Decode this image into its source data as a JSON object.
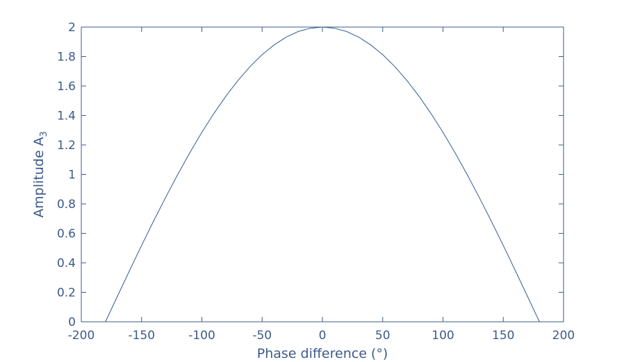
{
  "chart_data": {
    "type": "line",
    "title": "",
    "xlabel": "Phase difference (°)",
    "ylabel": "Amplitude A",
    "ylabel_subscript": "3",
    "xlim": [
      -200,
      200
    ],
    "ylim": [
      0,
      2
    ],
    "x_ticks": [
      -200,
      -150,
      -100,
      -50,
      0,
      50,
      100,
      150,
      200
    ],
    "y_ticks": [
      0,
      0.2,
      0.4,
      0.6,
      0.8,
      1,
      1.2,
      1.4,
      1.6,
      1.8,
      2
    ],
    "x_tick_labels": [
      "-200",
      "-150",
      "-100",
      "-50",
      "0",
      "50",
      "100",
      "150",
      "200"
    ],
    "y_tick_labels": [
      "0",
      "0.2",
      "0.4",
      "0.6",
      "0.8",
      "1",
      "1.2",
      "1.4",
      "1.6",
      "1.8",
      "2"
    ],
    "grid": false,
    "series": [
      {
        "x": [
          -180,
          -170,
          -160,
          -150,
          -140,
          -130,
          -120,
          -110,
          -100,
          -90,
          -80,
          -70,
          -60,
          -50,
          -40,
          -30,
          -20,
          -10,
          0,
          10,
          20,
          30,
          40,
          50,
          60,
          70,
          80,
          90,
          100,
          110,
          120,
          130,
          140,
          150,
          160,
          170,
          180
        ],
        "y": [
          0,
          0.174,
          0.347,
          0.518,
          0.684,
          0.845,
          1.0,
          1.147,
          1.286,
          1.414,
          1.532,
          1.638,
          1.732,
          1.813,
          1.879,
          1.932,
          1.97,
          1.992,
          2.0,
          1.992,
          1.97,
          1.932,
          1.879,
          1.813,
          1.732,
          1.638,
          1.532,
          1.414,
          1.286,
          1.147,
          1.0,
          0.845,
          0.684,
          0.518,
          0.347,
          0.174,
          0
        ]
      }
    ],
    "colors": {
      "axis": "#3b5a8a",
      "line": "#2e5b94",
      "background": "#ffffff"
    }
  }
}
